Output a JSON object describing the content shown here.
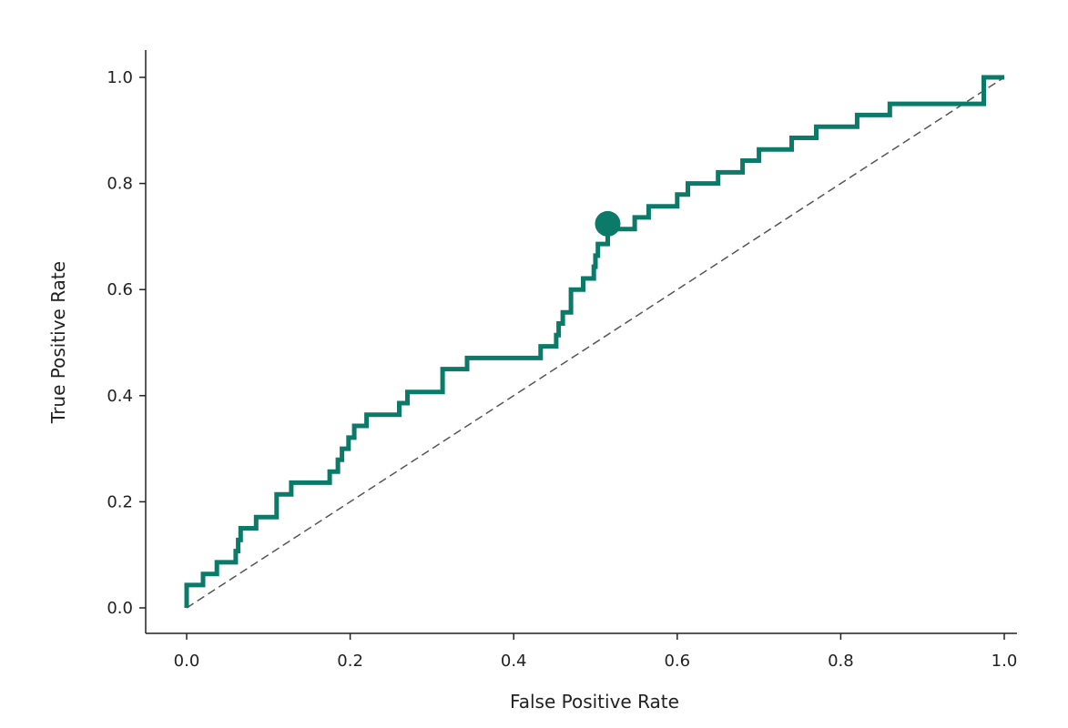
{
  "chart_data": {
    "type": "line",
    "title": "",
    "xlabel": "False Positive Rate",
    "ylabel": "True Positive Rate",
    "xlim": [
      -0.05,
      1.03
    ],
    "ylim": [
      -0.05,
      1.05
    ],
    "x_ticks": [
      0.0,
      0.2,
      0.4,
      0.6,
      0.8,
      1.0
    ],
    "x_tick_labels": [
      "0.0",
      "0.2",
      "0.4",
      "0.6",
      "0.8",
      "1.0"
    ],
    "y_ticks": [
      0.0,
      0.2,
      0.4,
      0.6,
      0.8,
      1.0
    ],
    "y_tick_labels": [
      "0.0",
      "0.2",
      "0.4",
      "0.6",
      "0.8",
      "1.0"
    ],
    "grid": false,
    "legend": "none",
    "colors": {
      "roc": "#0b7a68",
      "diagonal": "#555555",
      "axis": "#222222"
    },
    "series": [
      {
        "style": "step",
        "x": [
          0.0,
          0.0,
          0.005,
          0.005,
          0.02,
          0.02,
          0.037,
          0.037,
          0.06,
          0.06,
          0.063,
          0.063,
          0.066,
          0.066,
          0.072,
          0.072,
          0.085,
          0.085,
          0.11,
          0.11,
          0.128,
          0.128,
          0.175,
          0.175,
          0.185,
          0.185,
          0.19,
          0.19,
          0.198,
          0.198,
          0.205,
          0.205,
          0.22,
          0.22,
          0.26,
          0.26,
          0.27,
          0.27,
          0.313,
          0.313,
          0.343,
          0.343,
          0.433,
          0.433,
          0.452,
          0.452,
          0.455,
          0.455,
          0.46,
          0.46,
          0.47,
          0.47,
          0.485,
          0.485,
          0.498,
          0.498,
          0.5,
          0.5,
          0.503,
          0.503,
          0.515,
          0.515,
          0.548,
          0.548,
          0.565,
          0.565,
          0.6,
          0.6,
          0.613,
          0.613,
          0.65,
          0.65,
          0.68,
          0.68,
          0.7,
          0.7,
          0.74,
          0.74,
          0.77,
          0.77,
          0.82,
          0.82,
          0.86,
          0.86,
          0.975,
          0.975,
          1.0
        ],
        "y": [
          0.0,
          0.043,
          0.043,
          0.043,
          0.043,
          0.064,
          0.064,
          0.086,
          0.086,
          0.107,
          0.107,
          0.128,
          0.128,
          0.15,
          0.15,
          0.15,
          0.15,
          0.171,
          0.171,
          0.214,
          0.214,
          0.236,
          0.236,
          0.257,
          0.257,
          0.279,
          0.279,
          0.3,
          0.3,
          0.321,
          0.321,
          0.343,
          0.343,
          0.364,
          0.364,
          0.386,
          0.386,
          0.407,
          0.407,
          0.45,
          0.45,
          0.471,
          0.471,
          0.493,
          0.493,
          0.514,
          0.514,
          0.536,
          0.536,
          0.557,
          0.557,
          0.6,
          0.6,
          0.621,
          0.621,
          0.643,
          0.643,
          0.664,
          0.664,
          0.686,
          0.686,
          0.714,
          0.714,
          0.736,
          0.736,
          0.757,
          0.757,
          0.779,
          0.779,
          0.8,
          0.8,
          0.821,
          0.821,
          0.843,
          0.843,
          0.864,
          0.864,
          0.886,
          0.886,
          0.907,
          0.907,
          0.929,
          0.929,
          0.95,
          0.95,
          1.0,
          1.0
        ]
      }
    ],
    "reference_line": {
      "x": [
        0.0,
        1.0
      ],
      "y": [
        0.0,
        1.0
      ],
      "style": "dashed"
    },
    "marker_point": {
      "x": 0.515,
      "y": 0.724,
      "shape": "circle"
    }
  }
}
